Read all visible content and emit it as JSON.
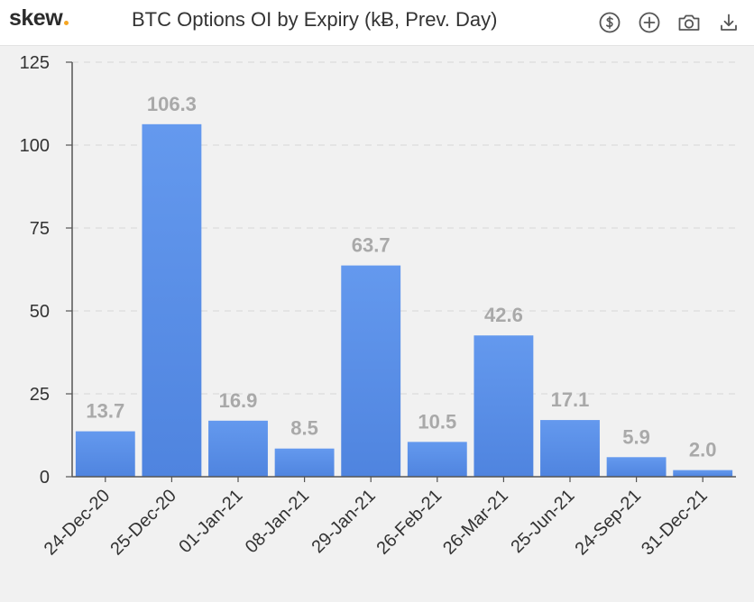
{
  "header": {
    "logo": "skew",
    "title": "BTC Options OI by Expiry (kɃ, Prev. Day)"
  },
  "toolbar": {
    "icons": [
      "dollar-icon",
      "add-icon",
      "camera-icon",
      "download-icon"
    ]
  },
  "colors": {
    "bar": "#5b8fe6",
    "label": "#a9a9a9",
    "logo_dot": "#f5a623",
    "grid": "#dcdcdc",
    "axis": "#555555"
  },
  "chart_data": {
    "type": "bar",
    "title": "BTC Options OI by Expiry (kɃ, Prev. Day)",
    "categories": [
      "24-Dec-20",
      "25-Dec-20",
      "01-Jan-21",
      "08-Jan-21",
      "29-Jan-21",
      "26-Feb-21",
      "26-Mar-21",
      "25-Jun-21",
      "24-Sep-21",
      "31-Dec-21"
    ],
    "values": [
      13.7,
      106.3,
      16.9,
      8.5,
      63.7,
      10.5,
      42.6,
      17.1,
      5.9,
      2.0
    ],
    "value_labels": [
      "13.7",
      "106.3",
      "16.9",
      "8.5",
      "63.7",
      "10.5",
      "42.6",
      "17.1",
      "5.9",
      "2.0"
    ],
    "yticks": [
      "0",
      "25",
      "50",
      "75",
      "100",
      "125"
    ],
    "ylim": [
      0,
      125
    ],
    "grid": true
  }
}
